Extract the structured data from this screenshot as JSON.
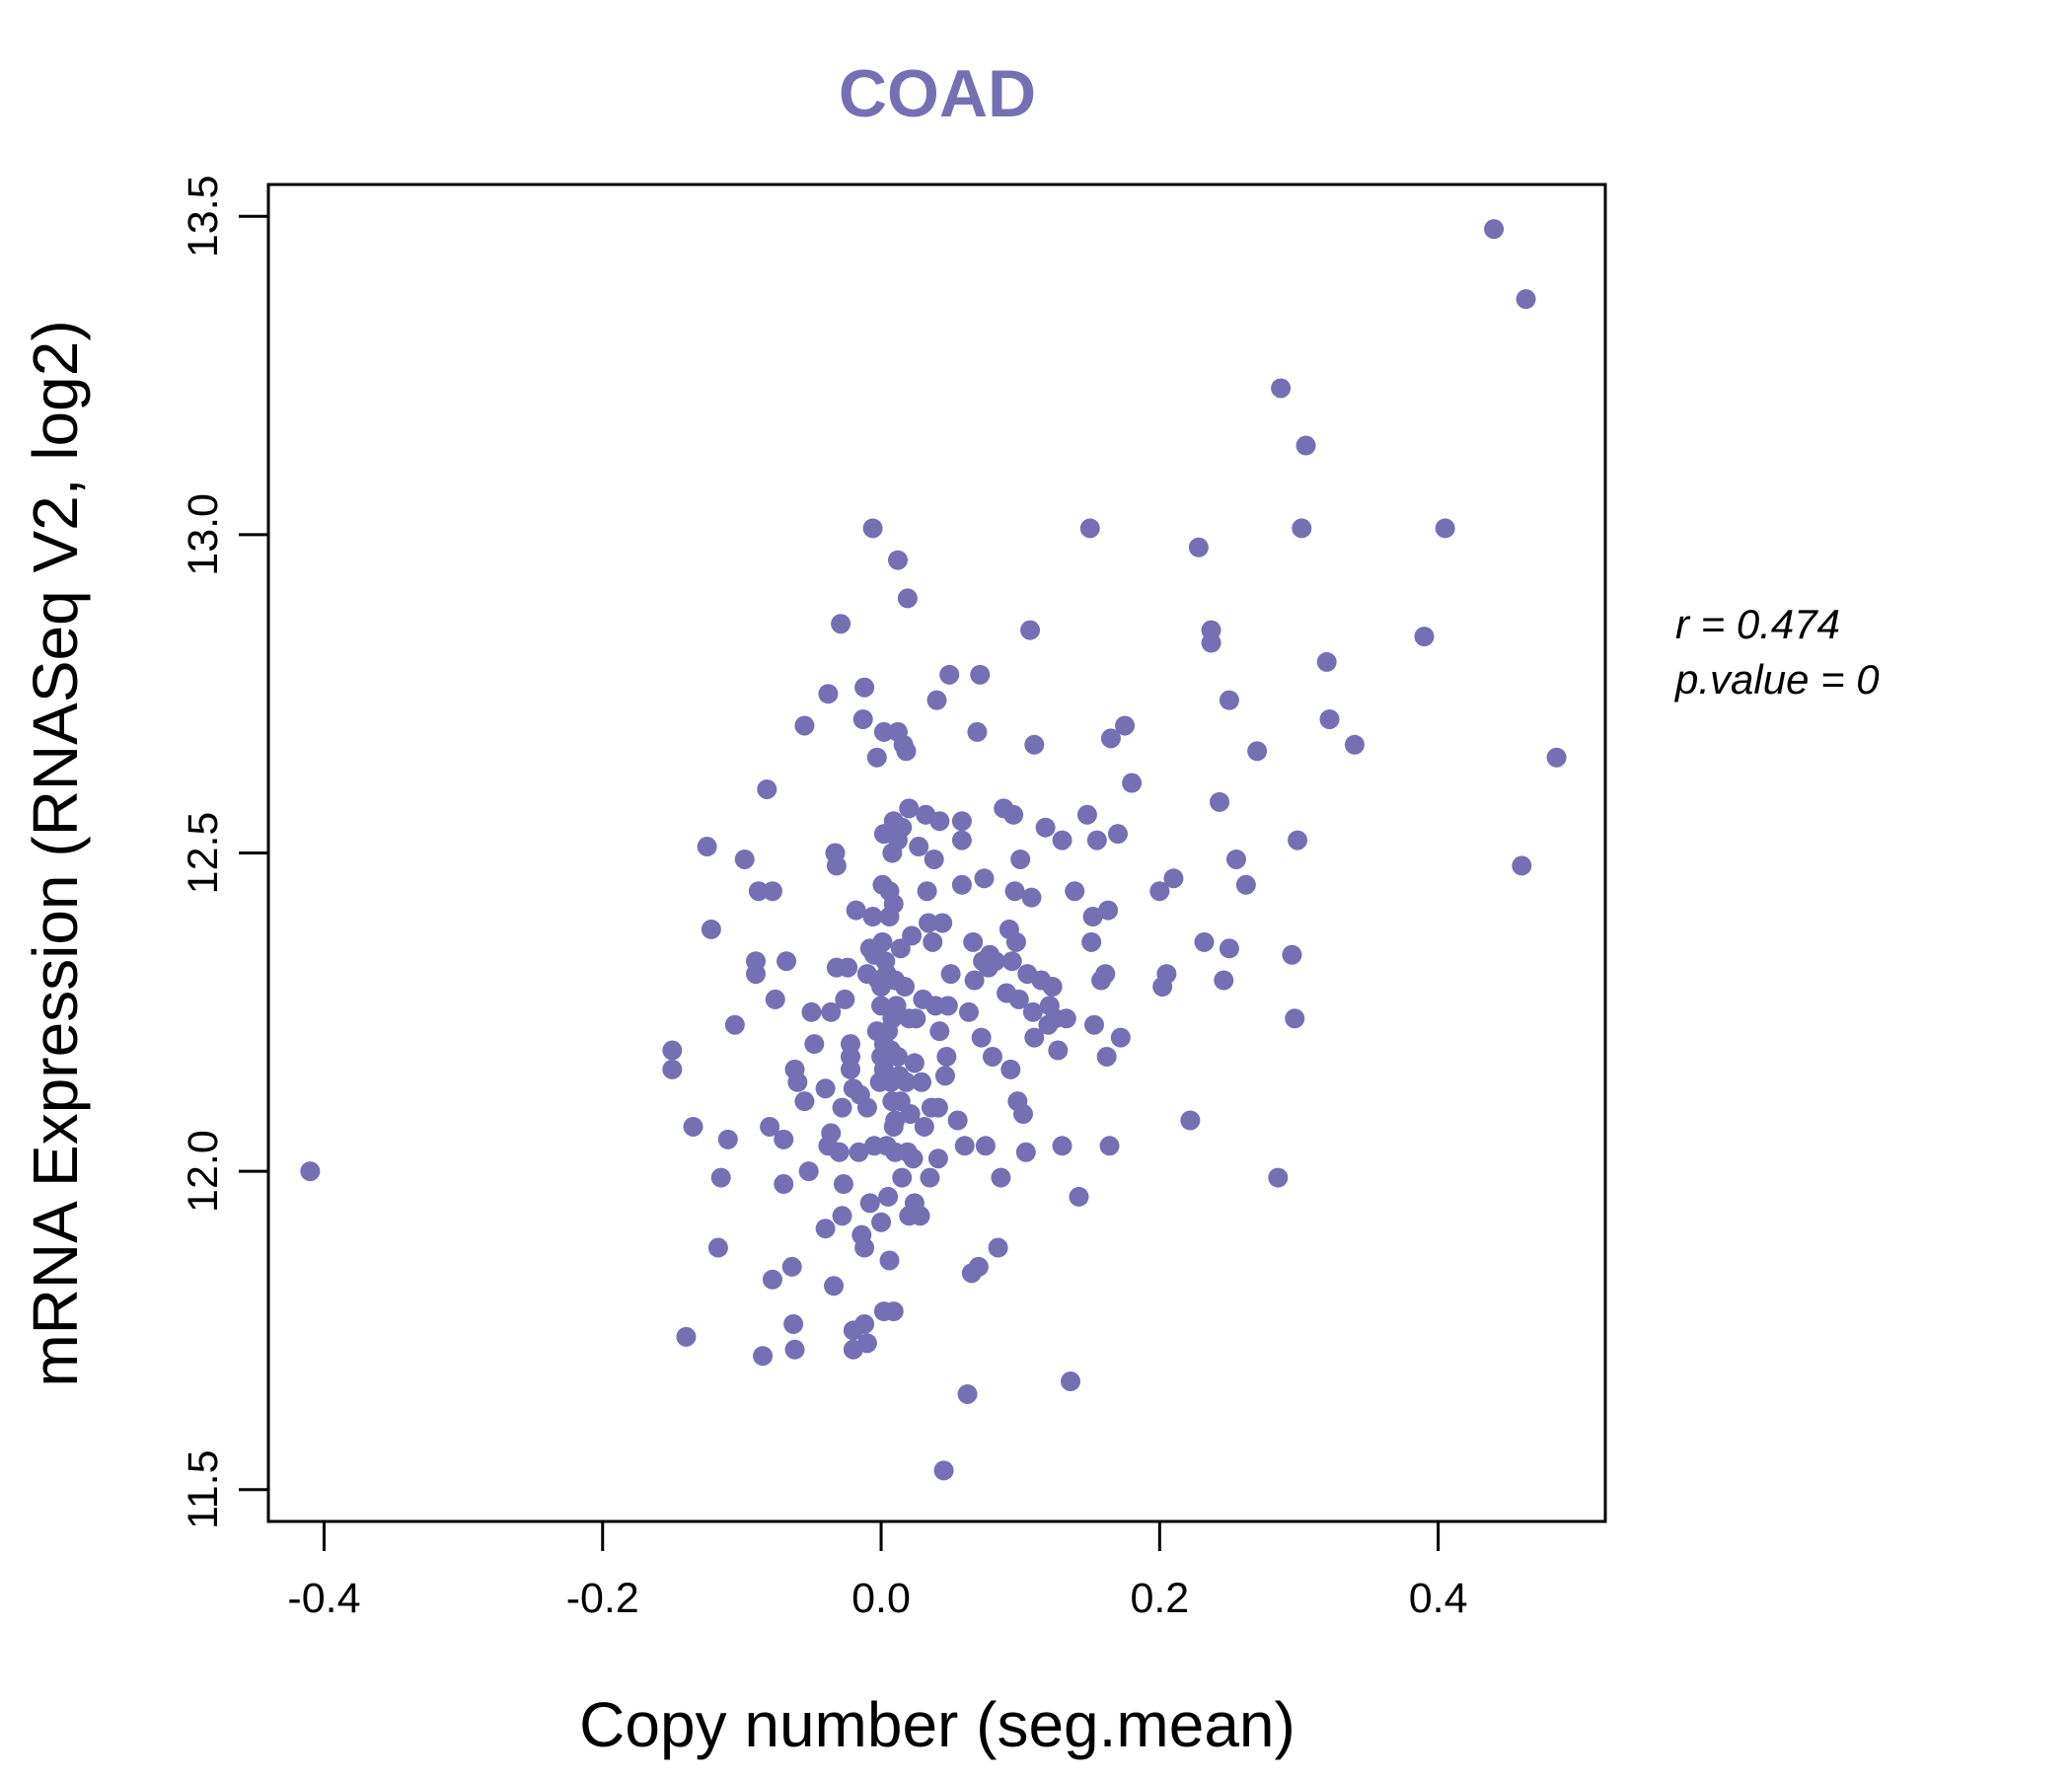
{
  "colors": {
    "points": "#7570b3",
    "title": "#7570b3",
    "axis": "#000000",
    "background": "#ffffff"
  },
  "chart_data": {
    "type": "scatter",
    "title": "COAD",
    "xlabel": "Copy number (seg.mean)",
    "ylabel": "mRNA Expression (RNASeq V2, log2)",
    "xlim": [
      -0.44,
      0.52
    ],
    "ylim": [
      11.45,
      13.55
    ],
    "xticks": [
      -0.4,
      -0.2,
      0.0,
      0.2,
      0.4
    ],
    "xtick_labels": [
      "-0.4",
      "-0.2",
      "0.0",
      "0.2",
      "0.4"
    ],
    "yticks": [
      11.5,
      12.0,
      12.5,
      13.0,
      13.5
    ],
    "ytick_labels": [
      "11.5",
      "12.0",
      "12.5",
      "13.0",
      "13.5"
    ],
    "stats": {
      "r_label": "r = 0.474",
      "p_label": "p.value = 0"
    },
    "points": [
      [
        -0.41,
        12.0
      ],
      [
        -0.15,
        12.19
      ],
      [
        -0.15,
        12.16
      ],
      [
        -0.14,
        11.74
      ],
      [
        -0.135,
        12.07
      ],
      [
        -0.125,
        12.51
      ],
      [
        -0.122,
        12.38
      ],
      [
        -0.117,
        11.88
      ],
      [
        -0.115,
        11.99
      ],
      [
        -0.11,
        12.05
      ],
      [
        -0.105,
        12.23
      ],
      [
        -0.098,
        12.49
      ],
      [
        -0.09,
        12.33
      ],
      [
        -0.09,
        12.31
      ],
      [
        -0.088,
        12.44
      ],
      [
        -0.085,
        11.71
      ],
      [
        -0.082,
        12.6
      ],
      [
        -0.08,
        12.07
      ],
      [
        -0.078,
        12.44
      ],
      [
        -0.078,
        11.83
      ],
      [
        -0.076,
        12.27
      ],
      [
        -0.07,
        12.05
      ],
      [
        -0.07,
        11.98
      ],
      [
        -0.068,
        12.33
      ],
      [
        -0.064,
        11.85
      ],
      [
        -0.063,
        11.76
      ],
      [
        -0.062,
        11.72
      ],
      [
        -0.062,
        12.16
      ],
      [
        -0.06,
        12.14
      ],
      [
        -0.055,
        12.11
      ],
      [
        -0.055,
        12.7
      ],
      [
        -0.052,
        12.0
      ],
      [
        -0.05,
        12.25
      ],
      [
        -0.048,
        12.2
      ],
      [
        -0.04,
        12.13
      ],
      [
        -0.04,
        11.91
      ],
      [
        -0.038,
        12.04
      ],
      [
        -0.038,
        12.75
      ],
      [
        -0.036,
        12.06
      ],
      [
        -0.036,
        12.25
      ],
      [
        -0.034,
        11.82
      ],
      [
        -0.033,
        12.5
      ],
      [
        -0.032,
        12.48
      ],
      [
        -0.032,
        12.32
      ],
      [
        -0.03,
        12.03
      ],
      [
        -0.029,
        12.86
      ],
      [
        -0.028,
        12.1
      ],
      [
        -0.028,
        11.93
      ],
      [
        -0.027,
        11.98
      ],
      [
        -0.026,
        12.27
      ],
      [
        -0.024,
        12.32
      ],
      [
        -0.022,
        12.2
      ],
      [
        -0.022,
        12.18
      ],
      [
        -0.022,
        12.16
      ],
      [
        -0.02,
        12.13
      ],
      [
        -0.02,
        11.75
      ],
      [
        -0.02,
        11.72
      ],
      [
        -0.018,
        12.41
      ],
      [
        -0.016,
        12.03
      ],
      [
        -0.015,
        12.12
      ],
      [
        -0.014,
        11.9
      ],
      [
        -0.013,
        12.71
      ],
      [
        -0.012,
        12.76
      ],
      [
        -0.012,
        11.88
      ],
      [
        -0.012,
        11.76
      ],
      [
        -0.01,
        12.31
      ],
      [
        -0.01,
        12.1
      ],
      [
        -0.01,
        11.73
      ],
      [
        -0.008,
        12.35
      ],
      [
        -0.008,
        11.95
      ],
      [
        -0.006,
        13.01
      ],
      [
        -0.006,
        12.4
      ],
      [
        -0.005,
        12.34
      ],
      [
        -0.005,
        12.04
      ],
      [
        -0.003,
        12.65
      ],
      [
        -0.003,
        12.34
      ],
      [
        -0.003,
        12.22
      ],
      [
        -0.002,
        12.3
      ],
      [
        -0.001,
        12.14
      ],
      [
        0.0,
        12.29
      ],
      [
        0.0,
        12.26
      ],
      [
        0.0,
        12.18
      ],
      [
        0.0,
        11.92
      ],
      [
        0.001,
        12.45
      ],
      [
        0.001,
        12.36
      ],
      [
        0.002,
        12.69
      ],
      [
        0.002,
        12.53
      ],
      [
        0.002,
        12.2
      ],
      [
        0.002,
        12.16
      ],
      [
        0.002,
        11.78
      ],
      [
        0.003,
        12.33
      ],
      [
        0.004,
        12.31
      ],
      [
        0.004,
        12.04
      ],
      [
        0.005,
        12.22
      ],
      [
        0.005,
        11.96
      ],
      [
        0.006,
        12.44
      ],
      [
        0.006,
        12.4
      ],
      [
        0.006,
        11.86
      ],
      [
        0.007,
        12.19
      ],
      [
        0.007,
        12.14
      ],
      [
        0.008,
        12.5
      ],
      [
        0.008,
        12.24
      ],
      [
        0.008,
        12.11
      ],
      [
        0.009,
        12.55
      ],
      [
        0.009,
        12.42
      ],
      [
        0.009,
        12.07
      ],
      [
        0.009,
        11.78
      ],
      [
        0.01,
        12.3
      ],
      [
        0.01,
        12.08
      ],
      [
        0.01,
        12.03
      ],
      [
        0.011,
        12.26
      ],
      [
        0.012,
        12.96
      ],
      [
        0.012,
        12.69
      ],
      [
        0.012,
        12.52
      ],
      [
        0.012,
        12.18
      ],
      [
        0.013,
        12.15
      ],
      [
        0.014,
        12.35
      ],
      [
        0.014,
        12.11
      ],
      [
        0.015,
        11.99
      ],
      [
        0.015,
        12.54
      ],
      [
        0.016,
        12.67
      ],
      [
        0.017,
        12.29
      ],
      [
        0.018,
        12.66
      ],
      [
        0.018,
        12.14
      ],
      [
        0.019,
        12.9
      ],
      [
        0.019,
        12.03
      ],
      [
        0.02,
        12.57
      ],
      [
        0.02,
        12.24
      ],
      [
        0.02,
        11.93
      ],
      [
        0.021,
        12.09
      ],
      [
        0.022,
        12.37
      ],
      [
        0.023,
        12.02
      ],
      [
        0.024,
        12.17
      ],
      [
        0.024,
        11.95
      ],
      [
        0.025,
        12.24
      ],
      [
        0.027,
        12.51
      ],
      [
        0.028,
        11.93
      ],
      [
        0.029,
        12.14
      ],
      [
        0.03,
        12.27
      ],
      [
        0.031,
        12.07
      ],
      [
        0.032,
        12.56
      ],
      [
        0.033,
        12.44
      ],
      [
        0.034,
        12.39
      ],
      [
        0.035,
        11.99
      ],
      [
        0.036,
        12.1
      ],
      [
        0.037,
        12.36
      ],
      [
        0.038,
        12.49
      ],
      [
        0.039,
        12.26
      ],
      [
        0.04,
        12.74
      ],
      [
        0.041,
        12.1
      ],
      [
        0.041,
        12.02
      ],
      [
        0.042,
        12.22
      ],
      [
        0.042,
        12.55
      ],
      [
        0.044,
        12.39
      ],
      [
        0.045,
        11.53
      ],
      [
        0.046,
        12.15
      ],
      [
        0.047,
        12.18
      ],
      [
        0.048,
        12.26
      ],
      [
        0.049,
        12.78
      ],
      [
        0.05,
        12.31
      ],
      [
        0.055,
        12.08
      ],
      [
        0.058,
        12.45
      ],
      [
        0.058,
        12.52
      ],
      [
        0.058,
        12.55
      ],
      [
        0.06,
        12.04
      ],
      [
        0.062,
        11.65
      ],
      [
        0.063,
        12.25
      ],
      [
        0.065,
        11.84
      ],
      [
        0.066,
        12.36
      ],
      [
        0.067,
        12.3
      ],
      [
        0.069,
        12.69
      ],
      [
        0.07,
        11.85
      ],
      [
        0.071,
        12.78
      ],
      [
        0.072,
        12.21
      ],
      [
        0.073,
        12.33
      ],
      [
        0.074,
        12.46
      ],
      [
        0.075,
        12.04
      ],
      [
        0.077,
        12.32
      ],
      [
        0.078,
        12.34
      ],
      [
        0.08,
        12.18
      ],
      [
        0.082,
        12.33
      ],
      [
        0.084,
        11.88
      ],
      [
        0.086,
        11.99
      ],
      [
        0.088,
        12.57
      ],
      [
        0.09,
        12.28
      ],
      [
        0.092,
        12.38
      ],
      [
        0.093,
        12.16
      ],
      [
        0.094,
        12.33
      ],
      [
        0.095,
        12.56
      ],
      [
        0.096,
        12.44
      ],
      [
        0.097,
        12.36
      ],
      [
        0.098,
        12.11
      ],
      [
        0.099,
        12.27
      ],
      [
        0.1,
        12.49
      ],
      [
        0.102,
        12.09
      ],
      [
        0.104,
        12.03
      ],
      [
        0.105,
        12.31
      ],
      [
        0.107,
        12.85
      ],
      [
        0.108,
        12.43
      ],
      [
        0.109,
        12.25
      ],
      [
        0.11,
        12.21
      ],
      [
        0.11,
        12.67
      ],
      [
        0.115,
        12.3
      ],
      [
        0.118,
        12.54
      ],
      [
        0.12,
        12.23
      ],
      [
        0.121,
        12.26
      ],
      [
        0.123,
        12.29
      ],
      [
        0.125,
        12.24
      ],
      [
        0.127,
        12.19
      ],
      [
        0.13,
        12.04
      ],
      [
        0.13,
        12.52
      ],
      [
        0.133,
        12.24
      ],
      [
        0.136,
        11.67
      ],
      [
        0.139,
        12.44
      ],
      [
        0.142,
        11.96
      ],
      [
        0.148,
        12.56
      ],
      [
        0.15,
        13.01
      ],
      [
        0.151,
        12.36
      ],
      [
        0.152,
        12.4
      ],
      [
        0.153,
        12.23
      ],
      [
        0.155,
        12.52
      ],
      [
        0.158,
        12.3
      ],
      [
        0.161,
        12.31
      ],
      [
        0.162,
        12.18
      ],
      [
        0.163,
        12.41
      ],
      [
        0.164,
        12.04
      ],
      [
        0.165,
        12.68
      ],
      [
        0.17,
        12.53
      ],
      [
        0.172,
        12.21
      ],
      [
        0.175,
        12.7
      ],
      [
        0.18,
        12.61
      ],
      [
        0.2,
        12.44
      ],
      [
        0.202,
        12.29
      ],
      [
        0.205,
        12.31
      ],
      [
        0.21,
        12.46
      ],
      [
        0.222,
        12.08
      ],
      [
        0.228,
        12.98
      ],
      [
        0.232,
        12.36
      ],
      [
        0.237,
        12.85
      ],
      [
        0.237,
        12.83
      ],
      [
        0.243,
        12.58
      ],
      [
        0.246,
        12.3
      ],
      [
        0.25,
        12.74
      ],
      [
        0.25,
        12.35
      ],
      [
        0.255,
        12.49
      ],
      [
        0.262,
        12.45
      ],
      [
        0.27,
        12.66
      ],
      [
        0.285,
        11.99
      ],
      [
        0.287,
        13.23
      ],
      [
        0.295,
        12.34
      ],
      [
        0.297,
        12.24
      ],
      [
        0.299,
        12.52
      ],
      [
        0.302,
        13.01
      ],
      [
        0.305,
        13.14
      ],
      [
        0.32,
        12.8
      ],
      [
        0.322,
        12.71
      ],
      [
        0.34,
        12.67
      ],
      [
        0.39,
        12.84
      ],
      [
        0.405,
        13.01
      ],
      [
        0.44,
        13.48
      ],
      [
        0.46,
        12.48
      ],
      [
        0.463,
        13.37
      ],
      [
        0.485,
        12.65
      ]
    ]
  }
}
